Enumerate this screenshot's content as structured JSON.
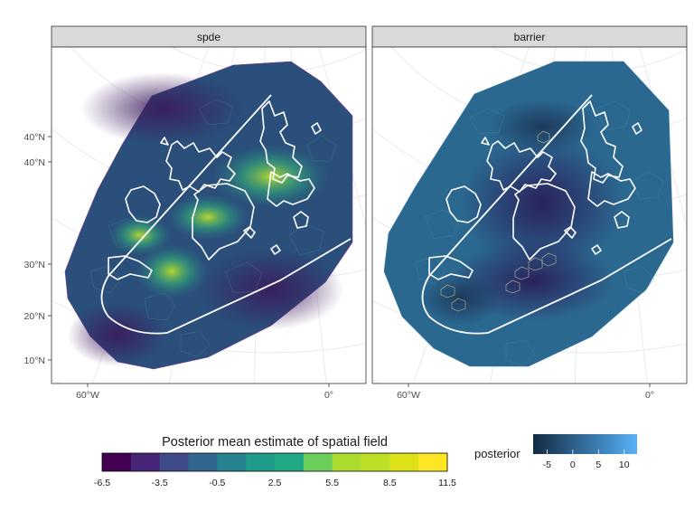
{
  "chart_data": {
    "type": "map",
    "panels": [
      {
        "name": "spde",
        "strip_label": "spde"
      },
      {
        "name": "barrier",
        "strip_label": "barrier"
      }
    ],
    "y_tick_labels": [
      "40°N",
      "40°N",
      "30°N",
      "20°N",
      "10°N"
    ],
    "x_tick_labels": [
      "60°W",
      "0°"
    ],
    "legend_field": {
      "title": "Posterior mean estimate of spatial field",
      "tick_labels": [
        "-6.5",
        "-3.5",
        "-0.5",
        "2.5",
        "5.5",
        "8.5",
        "11.5"
      ],
      "bin_count": 12,
      "palette": "viridis"
    },
    "legend_posterior": {
      "title": "posterior",
      "tick_labels": [
        "-5",
        "0",
        "5",
        "10"
      ],
      "color_low": "#132B43",
      "color_high": "#56B1F7"
    }
  },
  "colors": {
    "strip_fill": "#d9d9d9",
    "panel_border": "#333333",
    "grid": "#ebebeb",
    "coastline": "#ffffff",
    "spde_background": "#2a4f7a",
    "barrier_background": "#2b6890"
  }
}
